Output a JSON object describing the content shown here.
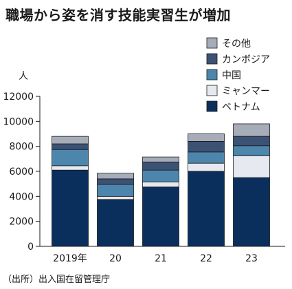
{
  "chart_data": {
    "type": "bar",
    "stacked": true,
    "title": "職場から姿を消す技能実習生が増加",
    "ylabel": "人",
    "xlabel": "",
    "ylim": [
      0,
      12000
    ],
    "yticks": [
      0,
      2000,
      4000,
      6000,
      8000,
      10000,
      12000
    ],
    "categories": [
      "2019年",
      "20",
      "21",
      "22",
      "23"
    ],
    "series": [
      {
        "name": "ベトナム",
        "color": "#0b2f5c",
        "values": [
          6100,
          3750,
          4750,
          6000,
          5500
        ]
      },
      {
        "name": "ミャンマー",
        "color": "#e6e9ef",
        "values": [
          350,
          250,
          400,
          650,
          1750
        ]
      },
      {
        "name": "中国",
        "color": "#4d86ac",
        "values": [
          1300,
          950,
          950,
          900,
          800
        ]
      },
      {
        "name": "カンボジア",
        "color": "#3b5275",
        "values": [
          450,
          450,
          650,
          850,
          750
        ]
      },
      {
        "name": "その他",
        "color": "#a6acb8",
        "values": [
          600,
          450,
          400,
          600,
          1000
        ]
      }
    ],
    "legend_order": [
      "その他",
      "カンボジア",
      "中国",
      "ミャンマー",
      "ベトナム"
    ],
    "legend_position": "top-right",
    "source": "（出所）出入国在留管理庁"
  }
}
